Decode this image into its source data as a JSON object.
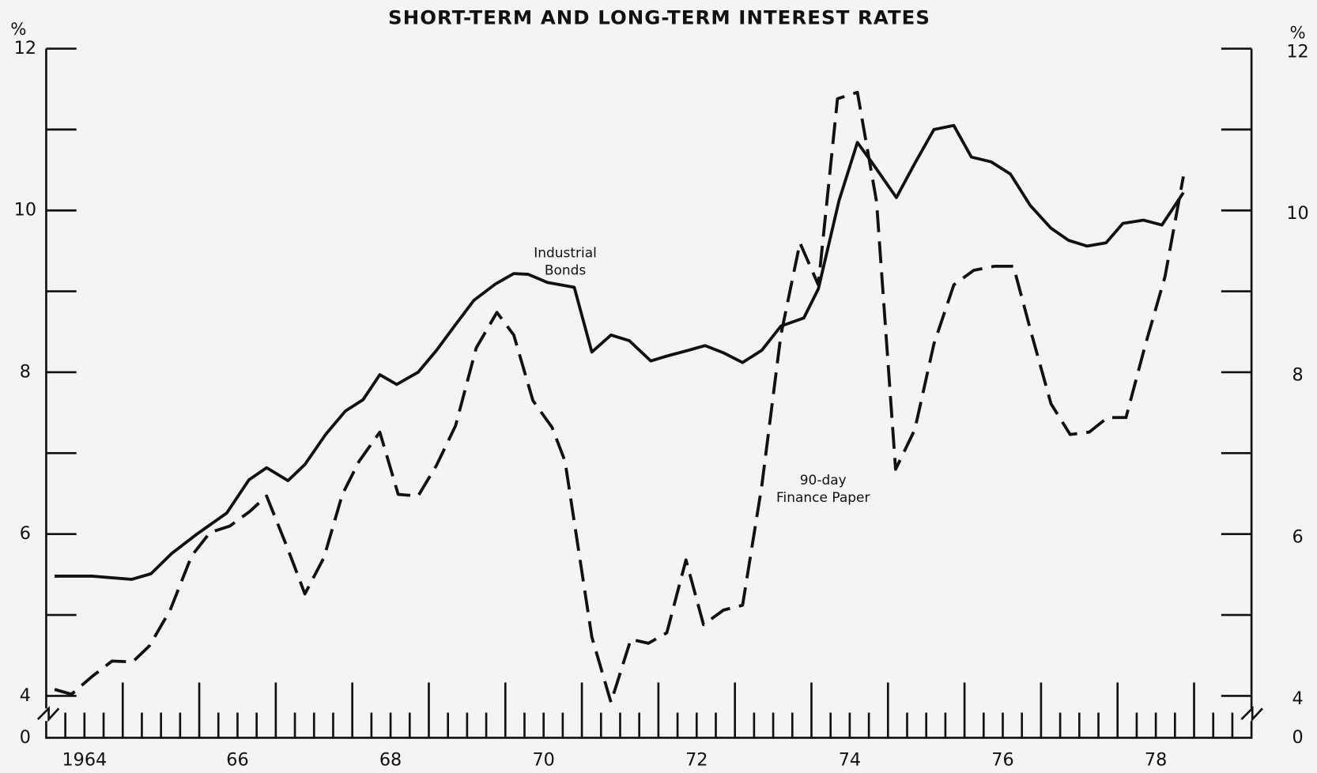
{
  "chart_data": {
    "type": "line",
    "title": "SHORT-TERM AND LONG-TERM INTEREST RATES",
    "y_unit_left": "%",
    "y_unit_right": "%",
    "xlim": [
      1964,
      1979.75
    ],
    "xticks": [
      {
        "value": 1964.5,
        "label": "1964"
      },
      {
        "value": 1966.5,
        "label": "66"
      },
      {
        "value": 1968.5,
        "label": "68"
      },
      {
        "value": 1970.5,
        "label": "70"
      },
      {
        "value": 1972.5,
        "label": "72"
      },
      {
        "value": 1974.5,
        "label": "74"
      },
      {
        "value": 1976.5,
        "label": "76"
      },
      {
        "value": 1978.5,
        "label": "78"
      }
    ],
    "x_major_tick_step": 1,
    "x_minor_tick_step": 0.25,
    "ylim": [
      4,
      12
    ],
    "yticks": [
      4,
      6,
      8,
      10,
      12
    ],
    "y_minor_ticks": [
      5,
      7,
      9,
      11
    ],
    "y_broken_axis_base": 0,
    "secondary_axis_mirrors_primary": true,
    "series": [
      {
        "name": "Industrial Bonds",
        "color": "#111111",
        "style": "solid",
        "x": [
          1964.11,
          1964.6,
          1965.12,
          1965.37,
          1965.64,
          1965.97,
          1966.36,
          1966.65,
          1966.88,
          1967.16,
          1967.38,
          1967.65,
          1967.91,
          1968.14,
          1968.36,
          1968.58,
          1968.86,
          1969.1,
          1969.35,
          1969.59,
          1969.87,
          1970.11,
          1970.3,
          1970.55,
          1970.9,
          1971.13,
          1971.38,
          1971.62,
          1971.9,
          1972.11,
          1972.39,
          1972.61,
          1972.85,
          1973.1,
          1973.35,
          1973.6,
          1973.9,
          1974.09,
          1974.36,
          1974.6,
          1974.8,
          1975.11,
          1975.35,
          1975.6,
          1975.86,
          1976.09,
          1976.35,
          1976.6,
          1976.86,
          1977.13,
          1977.36,
          1977.6,
          1977.85,
          1978.07,
          1978.34,
          1978.58,
          1978.86
        ],
        "values": [
          5.48,
          5.48,
          5.44,
          5.51,
          5.76,
          6.0,
          6.26,
          6.67,
          6.82,
          6.66,
          6.86,
          7.23,
          7.52,
          7.66,
          7.97,
          7.85,
          8.0,
          8.27,
          8.59,
          8.89,
          9.09,
          9.22,
          9.21,
          9.11,
          9.05,
          8.25,
          8.46,
          8.39,
          8.14,
          8.2,
          8.27,
          8.33,
          8.24,
          8.12,
          8.27,
          8.57,
          8.67,
          9.03,
          10.12,
          10.84,
          10.58,
          10.16,
          10.58,
          11.0,
          11.05,
          10.66,
          10.6,
          10.45,
          10.06,
          9.78,
          9.63,
          9.56,
          9.6,
          9.84,
          9.88,
          9.82,
          10.22
        ]
      },
      {
        "name": "90-day Finance Paper",
        "color": "#111111",
        "style": "dashed",
        "x": [
          1964.11,
          1964.33,
          1964.6,
          1964.86,
          1965.13,
          1965.35,
          1965.62,
          1965.9,
          1966.14,
          1966.4,
          1966.66,
          1966.88,
          1967.16,
          1967.38,
          1967.63,
          1967.87,
          1968.09,
          1968.36,
          1968.6,
          1968.86,
          1969.1,
          1969.35,
          1969.62,
          1969.89,
          1970.11,
          1970.36,
          1970.61,
          1970.78,
          1971.13,
          1971.38,
          1971.64,
          1971.87,
          1972.11,
          1972.36,
          1972.59,
          1972.85,
          1973.1,
          1973.35,
          1973.6,
          1973.85,
          1974.09,
          1974.34,
          1974.6,
          1974.85,
          1975.1,
          1975.35,
          1975.6,
          1975.86,
          1976.12,
          1976.39,
          1976.64,
          1976.88,
          1977.13,
          1977.38,
          1977.63,
          1977.87,
          1978.11,
          1978.36,
          1978.62,
          1978.86
        ],
        "values": [
          4.08,
          4.02,
          4.24,
          4.43,
          4.42,
          4.62,
          5.06,
          5.73,
          6.02,
          6.1,
          6.28,
          6.47,
          5.81,
          5.26,
          5.71,
          6.49,
          6.9,
          7.26,
          6.49,
          6.47,
          6.85,
          7.34,
          8.3,
          8.74,
          8.46,
          7.65,
          7.32,
          6.9,
          4.73,
          3.92,
          4.7,
          4.65,
          4.78,
          5.68,
          4.88,
          5.06,
          5.12,
          6.59,
          8.46,
          9.6,
          9.08,
          11.38,
          11.46,
          10.11,
          6.8,
          7.29,
          8.35,
          9.08,
          9.26,
          9.31,
          9.31,
          8.46,
          7.61,
          7.23,
          7.26,
          7.44,
          7.44,
          8.33,
          9.18,
          10.42
        ]
      }
    ],
    "annotations": [
      {
        "lines": [
          "Industrial",
          "Bonds"
        ],
        "series": 0
      },
      {
        "lines": [
          "90-day",
          "Finance Paper"
        ],
        "series": 1
      }
    ]
  }
}
